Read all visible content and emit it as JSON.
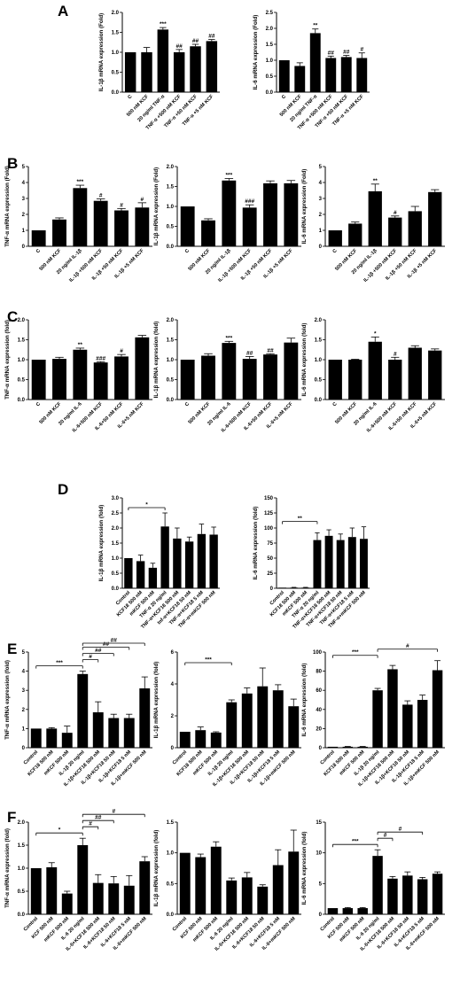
{
  "panels": [
    {
      "label": "A",
      "top": 0,
      "charts": [
        {
          "type": "bar",
          "ylabel": "IL-1β mRNA expression (Fold)",
          "ylim": [
            0,
            2.0
          ],
          "yticks": [
            0,
            0.5,
            1.0,
            1.5,
            2.0
          ],
          "categories": [
            "C",
            "500 nM KCF",
            "20 ng/ml TNF-α",
            "TNF-α +500 nM KCF",
            "TNF-α +50 nM KCF",
            "TNF-α +5 nM KCF"
          ],
          "values": [
            1.0,
            1.0,
            1.57,
            1.0,
            1.15,
            1.28
          ],
          "errors": [
            0,
            0.12,
            0.05,
            0.07,
            0.05,
            0.04
          ],
          "significance": [
            "",
            "",
            "***",
            "##",
            "##",
            "##"
          ],
          "brackets": []
        },
        {
          "type": "bar",
          "ylabel": "IL-6 mRNA expression (Fold)",
          "ylim": [
            0,
            2.5
          ],
          "yticks": [
            0.0,
            0.5,
            1.0,
            1.5,
            2.0,
            2.5
          ],
          "categories": [
            "C",
            "500 nM KCF",
            "20 ng/ml TNF-α",
            "TNF-α +500 nM KCF",
            "TNF-α +50 nM KCF",
            "TNF-α +5 nM KCF"
          ],
          "values": [
            1.0,
            0.82,
            1.85,
            1.07,
            1.1,
            1.07
          ],
          "errors": [
            0,
            0.1,
            0.13,
            0.06,
            0.05,
            0.16
          ],
          "significance": [
            "",
            "",
            "**",
            "##",
            "##",
            "#"
          ],
          "brackets": []
        }
      ]
    },
    {
      "label": "B",
      "top": 172,
      "charts": [
        {
          "type": "bar",
          "ylabel": "TNF-α mRNA expression (Fold)",
          "ylim": [
            0,
            5
          ],
          "yticks": [
            0,
            1,
            2,
            3,
            4,
            5
          ],
          "categories": [
            "C",
            "500 nM KCF",
            "20 ng/ml IL-1β",
            "IL-1β +500 nM KCF",
            "IL-1β +50 nM KCF",
            "IL-1β +5 nM KCF"
          ],
          "values": [
            1.0,
            1.68,
            3.65,
            2.85,
            2.25,
            2.43
          ],
          "errors": [
            0,
            0.1,
            0.18,
            0.12,
            0.12,
            0.3
          ],
          "significance": [
            "",
            "",
            "***",
            "#",
            "#",
            "#"
          ],
          "brackets": []
        },
        {
          "type": "bar",
          "ylabel": "IL-1β mRNA expression (Fold)",
          "ylim": [
            0,
            2.0
          ],
          "yticks": [
            0.0,
            0.5,
            1.0,
            1.5,
            2.0
          ],
          "categories": [
            "C",
            "500 nM KCF",
            "20 ng/ml IL-1β",
            "IL-1β +500 nM KCF",
            "IL-1β +50 nM KCF",
            "IL-1β +5 nM KCF"
          ],
          "values": [
            1.0,
            0.65,
            1.65,
            0.97,
            1.58,
            1.58
          ],
          "errors": [
            0,
            0.04,
            0.05,
            0.07,
            0.06,
            0.07
          ],
          "significance": [
            "",
            "",
            "***",
            "###",
            "",
            ""
          ],
          "brackets": []
        },
        {
          "type": "bar",
          "ylabel": "IL-6 mRNA expression (Fold)",
          "ylim": [
            0,
            5
          ],
          "yticks": [
            0,
            1,
            2,
            3,
            4,
            5
          ],
          "categories": [
            "C",
            "500 nM KCF",
            "20 ng/ml IL-1β",
            "IL-1β +500 nM KCF",
            "IL-1β +50 nM KCF",
            "IL-1β +5 nM KCF"
          ],
          "values": [
            1.0,
            1.42,
            3.45,
            1.8,
            2.2,
            3.4
          ],
          "errors": [
            0,
            0.1,
            0.45,
            0.1,
            0.3,
            0.15
          ],
          "significance": [
            "",
            "",
            "**",
            "#",
            "",
            ""
          ],
          "brackets": []
        }
      ]
    },
    {
      "label": "C",
      "top": 345,
      "charts": [
        {
          "type": "bar",
          "ylabel": "TNF-α mRNA expression (fold)",
          "ylim": [
            0,
            2.0
          ],
          "yticks": [
            0.0,
            0.5,
            1.0,
            1.5,
            2.0
          ],
          "categories": [
            "C",
            "500 nM KCF",
            "20 ng/ml IL-6",
            "IL-6+500 nM KCF",
            "IL-6+50 nM KCF",
            "IL-6+5 nM KCF"
          ],
          "values": [
            1.0,
            1.02,
            1.25,
            0.93,
            1.08,
            1.56
          ],
          "errors": [
            0,
            0.04,
            0.04,
            0.02,
            0.05,
            0.05
          ],
          "significance": [
            "",
            "",
            "**",
            "###",
            "#",
            ""
          ],
          "brackets": []
        },
        {
          "type": "bar",
          "ylabel": "IL-1β mRNA expression (fold)",
          "ylim": [
            0,
            2.0
          ],
          "yticks": [
            0.0,
            0.5,
            1.0,
            1.5,
            2.0
          ],
          "categories": [
            "C",
            "500 nM KCF",
            "20 ng/ml IL-6",
            "IL-6+500 nM KCF",
            "IL-6+50 nM KCF",
            "IL-6+5 nM KCF"
          ],
          "values": [
            1.0,
            1.1,
            1.42,
            1.02,
            1.13,
            1.43
          ],
          "errors": [
            0,
            0.05,
            0.04,
            0.06,
            0.02,
            0.11
          ],
          "significance": [
            "",
            "",
            "***",
            "##",
            "##",
            ""
          ],
          "brackets": []
        },
        {
          "type": "bar",
          "ylabel": "IL-6 mRNA expression (fold)",
          "ylim": [
            0,
            2.0
          ],
          "yticks": [
            0.0,
            0.5,
            1.0,
            1.5,
            2.0
          ],
          "categories": [
            "C",
            "500 nM KCF",
            "20 ng/ml IL-6",
            "IL-6+500 nM KCF",
            "IL-6+50 nM KCF",
            "IL-6+5 nM KCF"
          ],
          "values": [
            1.0,
            1.0,
            1.45,
            1.0,
            1.3,
            1.23
          ],
          "errors": [
            0,
            0.01,
            0.12,
            0.06,
            0.05,
            0.04
          ],
          "significance": [
            "",
            "",
            "*",
            "#",
            "",
            ""
          ],
          "brackets": []
        }
      ]
    },
    {
      "label": "D",
      "top": 540,
      "charts": [
        {
          "type": "bar",
          "ylabel": "IL-1β mRNA expression (fold)",
          "ylim": [
            0,
            3
          ],
          "yticks": [
            0.0,
            0.5,
            1.0,
            1.5,
            2.0,
            2.5,
            3.0
          ],
          "categories": [
            "Control",
            "KCF18 500 nM",
            "mKCF 500 nM",
            "TNF-α 20 ng/ml",
            "TNF-α+KCF18 500 nM",
            "tnf-α+KCF18 50 nM",
            "TNF-α+KCF18 5 nM",
            "TNF-α+mKCF 500 nM"
          ],
          "values": [
            1.0,
            0.9,
            0.68,
            2.05,
            1.65,
            1.55,
            1.8,
            1.78
          ],
          "errors": [
            0,
            0.2,
            0.15,
            0.45,
            0.35,
            0.15,
            0.33,
            0.25
          ],
          "significance": [
            "",
            "",
            "",
            "",
            "",
            "",
            "",
            ""
          ],
          "brackets": [
            {
              "from": 0,
              "to": 3,
              "text": "*"
            }
          ]
        },
        {
          "type": "bar",
          "ylabel": "IL-6 mRNA expression (fold)",
          "ylim": [
            0,
            150
          ],
          "yticks": [
            0,
            25,
            50,
            75,
            100,
            125,
            150
          ],
          "categories": [
            "Control",
            "KCF18 500 nM",
            "mKCF 500 nM",
            "TNF-α 20 ng/ml",
            "TNF-α+KCF18 500 nM",
            "TNF-α+KCF18 50 nM",
            "TNF-α+KCF18 5 nM",
            "TNF-α+mKCF 500 nM"
          ],
          "values": [
            1,
            1,
            1,
            80,
            87,
            80,
            85,
            82
          ],
          "errors": [
            0,
            0.5,
            0.5,
            12,
            10,
            10,
            15,
            20
          ],
          "significance": [
            "",
            "",
            "",
            "",
            "",
            "",
            "",
            ""
          ],
          "brackets": [
            {
              "from": 0,
              "to": 3,
              "text": "**"
            }
          ]
        }
      ]
    },
    {
      "label": "E",
      "top": 720,
      "charts": [
        {
          "type": "bar",
          "ylabel": "TNF-α mRNA expression (fold)",
          "ylim": [
            0,
            5
          ],
          "yticks": [
            0,
            1,
            2,
            3,
            4,
            5
          ],
          "categories": [
            "Control",
            "KCF18 500 nM",
            "mKCF 500 nM",
            "IL-1β 20 ng/ml",
            "IL-1β+KCF18 500 nM",
            "IL-1β+KCF18 50 nM",
            "IL-1β+KCF18 5 nM",
            "IL-1β+mKCF 500 nM"
          ],
          "values": [
            1.0,
            1.0,
            0.78,
            3.85,
            1.85,
            1.55,
            1.55,
            3.1
          ],
          "errors": [
            0,
            0.05,
            0.35,
            0.15,
            0.55,
            0.2,
            0.2,
            0.6
          ],
          "significance": [
            "",
            "",
            "",
            "",
            "",
            "",
            "",
            ""
          ],
          "brackets": [
            {
              "from": 0,
              "to": 3,
              "text": "***"
            },
            {
              "from": 3,
              "to": 4,
              "text": "#"
            },
            {
              "from": 3,
              "to": 5,
              "text": "##"
            },
            {
              "from": 3,
              "to": 6,
              "text": "##"
            },
            {
              "from": 3,
              "to": 7,
              "text": "##"
            }
          ]
        },
        {
          "type": "bar",
          "ylabel": "IL-1β mRNA expression (fold)",
          "ylim": [
            0,
            6
          ],
          "yticks": [
            0,
            2,
            4,
            6
          ],
          "categories": [
            "Control",
            "KCF18 500 nM",
            "mKCF 500 nM",
            "IL-1β 20 ng/ml",
            "IL-1β+KCF18 500 nM",
            "IL-1β+KCF18 50 nM",
            "IL-1β+KCF18 5 nM",
            "IL-1β+mKCF 500 nM"
          ],
          "values": [
            1.0,
            1.1,
            0.95,
            2.85,
            3.4,
            3.85,
            3.6,
            2.6
          ],
          "errors": [
            0,
            0.2,
            0.05,
            0.15,
            0.35,
            1.15,
            0.35,
            0.45
          ],
          "significance": [
            "",
            "",
            "",
            "",
            "",
            "",
            "",
            ""
          ],
          "brackets": [
            {
              "from": 0,
              "to": 3,
              "text": "***"
            }
          ]
        },
        {
          "type": "bar",
          "ylabel": "IL-6 mRNA expression (fold)",
          "ylim": [
            0,
            100
          ],
          "yticks": [
            0,
            20,
            40,
            60,
            80,
            100
          ],
          "categories": [
            "Control",
            "KCF18 500 nM",
            "mKCF 500 nM",
            "IL-1β 20 ng/ml",
            "IL-1β+KCF18 500 nM",
            "IL-1β+KCF18 50 nM",
            "IL-1β+KCF18 5 nM",
            "IL-1β+mKCF 500 nM"
          ],
          "values": [
            1,
            1,
            1,
            60,
            82,
            45,
            50,
            81
          ],
          "errors": [
            0,
            0.3,
            0.3,
            2,
            4,
            4,
            5,
            10
          ],
          "significance": [
            "",
            "",
            "",
            "",
            "",
            "",
            "",
            ""
          ],
          "brackets": [
            {
              "from": 0,
              "to": 3,
              "text": "***"
            },
            {
              "from": 3,
              "to": 7,
              "text": "#"
            }
          ]
        }
      ]
    },
    {
      "label": "F",
      "top": 910,
      "charts": [
        {
          "type": "bar",
          "ylabel": "TNF-α mRNA expression (fold)",
          "ylim": [
            0,
            2.0
          ],
          "yticks": [
            0.0,
            0.5,
            1.0,
            1.5,
            2.0
          ],
          "categories": [
            "Control",
            "KCF 500 nM",
            "mKCF 500 nM",
            "IL-6 20 ng/ml",
            "IL-6+KCF18 500 nM",
            "IL-6+KCF18 50 nM",
            "IL-6+KCF18 5 nM",
            "IL-6+mKCF 500 nM"
          ],
          "values": [
            1.0,
            1.02,
            0.45,
            1.5,
            0.68,
            0.67,
            0.62,
            1.15
          ],
          "errors": [
            0,
            0.1,
            0.05,
            0.15,
            0.18,
            0.15,
            0.22,
            0.1
          ],
          "significance": [
            "",
            "",
            "",
            "",
            "",
            "",
            "",
            ""
          ],
          "brackets": [
            {
              "from": 0,
              "to": 3,
              "text": "*"
            },
            {
              "from": 3,
              "to": 4,
              "text": "#"
            },
            {
              "from": 3,
              "to": 5,
              "text": "##"
            },
            {
              "from": 3,
              "to": 7,
              "text": "#"
            }
          ]
        },
        {
          "type": "bar",
          "ylabel": "IL-1β mRNA expression (fold)",
          "ylim": [
            0,
            1.5
          ],
          "yticks": [
            0.0,
            0.5,
            1.0,
            1.5
          ],
          "categories": [
            "Control",
            "KCF 500 nM",
            "mKCF 500 nM",
            "IL-6 20 ng/ml",
            "IL-6+KCF18 500 nM",
            "IL-6+KCF18 50 nM",
            "IL-6+KCF18 5 nM",
            "IL-6+mKCF 500 nM"
          ],
          "values": [
            1.0,
            0.93,
            1.1,
            0.55,
            0.6,
            0.45,
            0.8,
            1.02
          ],
          "errors": [
            0,
            0.05,
            0.08,
            0.04,
            0.08,
            0.03,
            0.25,
            0.35
          ],
          "significance": [
            "",
            "",
            "",
            "",
            "",
            "",
            "",
            ""
          ],
          "brackets": []
        },
        {
          "type": "bar",
          "ylabel": "IL-6 mRNA expression (fold)",
          "ylim": [
            0,
            15
          ],
          "yticks": [
            0,
            5,
            10,
            15
          ],
          "categories": [
            "Control",
            "KCF 500 nM",
            "mKCF 500 nM",
            "IL-6 20 ng/ml",
            "IL-6+KCF18 500 nM",
            "IL-6+KCF18 50 nM",
            "IL-6+KCF18 5 nM",
            "IL-6+mKCF 500 nM"
          ],
          "values": [
            1.0,
            1.0,
            1.0,
            9.5,
            5.8,
            6.3,
            5.7,
            6.6
          ],
          "errors": [
            0,
            0.1,
            0.1,
            1.0,
            0.35,
            0.6,
            0.3,
            0.3
          ],
          "significance": [
            "",
            "",
            "",
            "",
            "",
            "",
            "",
            ""
          ],
          "brackets": [
            {
              "from": 0,
              "to": 3,
              "text": "***"
            },
            {
              "from": 3,
              "to": 4,
              "text": "#"
            },
            {
              "from": 3,
              "to": 6,
              "text": "#"
            }
          ]
        }
      ]
    }
  ]
}
